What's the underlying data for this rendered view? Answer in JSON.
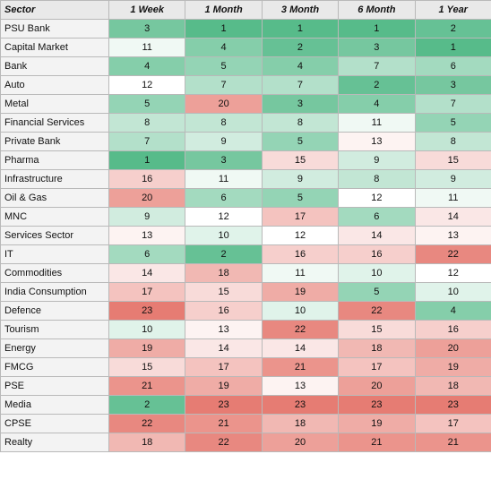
{
  "table": {
    "headers": [
      "Sector",
      "1 Week",
      "1 Month",
      "3 Month",
      "6 Month",
      "1 Year"
    ],
    "scale": {
      "min": 1,
      "max": 23,
      "low_color": "#57bb8a",
      "mid_color": "#ffffff",
      "high_color": "#e67c73"
    },
    "rows": [
      {
        "sector": "PSU Bank",
        "ranks": [
          3,
          1,
          1,
          1,
          2
        ]
      },
      {
        "sector": "Capital Market",
        "ranks": [
          11,
          4,
          2,
          3,
          1
        ]
      },
      {
        "sector": "Bank",
        "ranks": [
          4,
          5,
          4,
          7,
          6
        ]
      },
      {
        "sector": "Auto",
        "ranks": [
          12,
          7,
          7,
          2,
          3
        ]
      },
      {
        "sector": "Metal",
        "ranks": [
          5,
          20,
          3,
          4,
          7
        ]
      },
      {
        "sector": "Financial Services",
        "ranks": [
          8,
          8,
          8,
          11,
          5
        ]
      },
      {
        "sector": "Private Bank",
        "ranks": [
          7,
          9,
          5,
          13,
          8
        ]
      },
      {
        "sector": "Pharma",
        "ranks": [
          1,
          3,
          15,
          9,
          15
        ]
      },
      {
        "sector": "Infrastructure",
        "ranks": [
          16,
          11,
          9,
          8,
          9
        ]
      },
      {
        "sector": "Oil & Gas",
        "ranks": [
          20,
          6,
          5,
          12,
          11
        ]
      },
      {
        "sector": "MNC",
        "ranks": [
          9,
          12,
          17,
          6,
          14
        ]
      },
      {
        "sector": "Services Sector",
        "ranks": [
          13,
          10,
          12,
          14,
          13
        ]
      },
      {
        "sector": "IT",
        "ranks": [
          6,
          2,
          16,
          16,
          22
        ]
      },
      {
        "sector": "Commodities",
        "ranks": [
          14,
          18,
          11,
          10,
          12
        ]
      },
      {
        "sector": "India Consumption",
        "ranks": [
          17,
          15,
          19,
          5,
          10
        ]
      },
      {
        "sector": "Defence",
        "ranks": [
          23,
          16,
          10,
          22,
          4
        ]
      },
      {
        "sector": "Tourism",
        "ranks": [
          10,
          13,
          22,
          15,
          16
        ]
      },
      {
        "sector": "Energy",
        "ranks": [
          19,
          14,
          14,
          18,
          20
        ]
      },
      {
        "sector": "FMCG",
        "ranks": [
          15,
          17,
          21,
          17,
          19
        ]
      },
      {
        "sector": "PSE",
        "ranks": [
          21,
          19,
          13,
          20,
          18
        ]
      },
      {
        "sector": "Media",
        "ranks": [
          2,
          23,
          23,
          23,
          23
        ]
      },
      {
        "sector": "CPSE",
        "ranks": [
          22,
          21,
          18,
          19,
          17
        ]
      },
      {
        "sector": "Realty",
        "ranks": [
          18,
          22,
          20,
          21,
          21
        ]
      }
    ]
  }
}
